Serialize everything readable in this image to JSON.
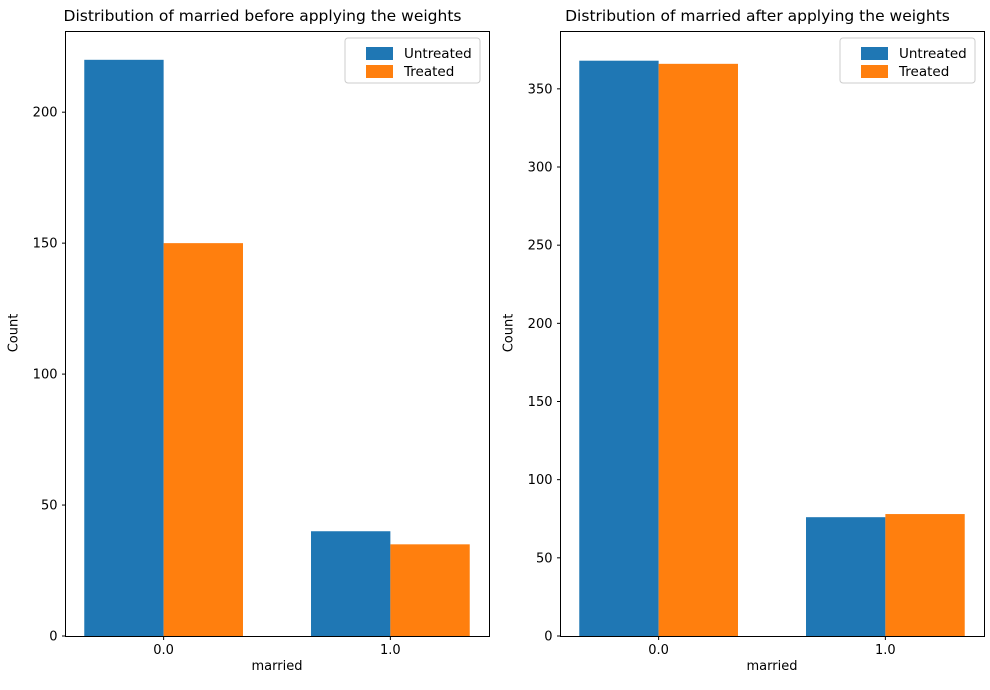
{
  "figure": {
    "background": "#ffffff",
    "text_color": "#000000",
    "axes_frame_color": "#000000",
    "legend_border_color": "#cccccc"
  },
  "chart_data": [
    {
      "type": "bar",
      "title": "Distribution of married before applying the weights",
      "xlabel": "married",
      "ylabel": "Count",
      "categories": [
        "0.0",
        "1.0"
      ],
      "series": [
        {
          "name": "Untreated",
          "color": "#1f77b4",
          "values": [
            220,
            40
          ]
        },
        {
          "name": "Treated",
          "color": "#ff7f0e",
          "values": [
            150,
            35
          ]
        }
      ],
      "yticks": [
        0,
        50,
        100,
        150,
        200
      ],
      "ylim": [
        0,
        231
      ],
      "grid": false,
      "legend_position": "upper right"
    },
    {
      "type": "bar",
      "title": "Distribution of married after applying the weights",
      "xlabel": "married",
      "ylabel": "Count",
      "categories": [
        "0.0",
        "1.0"
      ],
      "series": [
        {
          "name": "Untreated",
          "color": "#1f77b4",
          "values": [
            368,
            76
          ]
        },
        {
          "name": "Treated",
          "color": "#ff7f0e",
          "values": [
            366,
            78
          ]
        }
      ],
      "yticks": [
        0,
        50,
        100,
        150,
        200,
        250,
        300,
        350
      ],
      "ylim": [
        0,
        387
      ],
      "grid": false,
      "legend_position": "upper right"
    }
  ]
}
